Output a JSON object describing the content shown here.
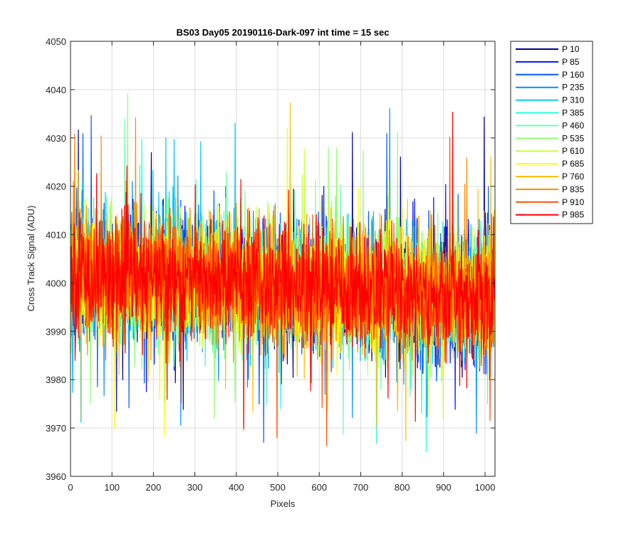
{
  "chart_data": {
    "type": "line",
    "title": "BS03 Day05 20190116-Dark-097 int time = 15 sec",
    "xlabel": "Pixels",
    "ylabel": "Cross Track Signal (ADU)",
    "xlim": [
      0,
      1024
    ],
    "ylim": [
      3960,
      4050
    ],
    "xticks": [
      0,
      100,
      200,
      300,
      400,
      500,
      600,
      700,
      800,
      900,
      1000
    ],
    "yticks": [
      3960,
      3970,
      3980,
      3990,
      4000,
      4010,
      4020,
      4030,
      4040,
      4050
    ],
    "grid": true,
    "legend_position": "outside-top-right",
    "n_points": 1024,
    "trend": {
      "start": 4002,
      "end": 3997,
      "noise_sd": 6
    },
    "series": [
      {
        "name": "P 10",
        "color": "#00008f"
      },
      {
        "name": "P 85",
        "color": "#0010ff"
      },
      {
        "name": "P 160",
        "color": "#005cff"
      },
      {
        "name": "P 235",
        "color": "#0090ff"
      },
      {
        "name": "P 310",
        "color": "#00c8ff"
      },
      {
        "name": "P 385",
        "color": "#20ffe0"
      },
      {
        "name": "P 460",
        "color": "#60ffb0"
      },
      {
        "name": "P 535",
        "color": "#90ff70"
      },
      {
        "name": "P 610",
        "color": "#c8ff40"
      },
      {
        "name": "P 685",
        "color": "#ffff00"
      },
      {
        "name": "P 760",
        "color": "#ffc000"
      },
      {
        "name": "P 835",
        "color": "#ff8c00"
      },
      {
        "name": "P 910",
        "color": "#ff5000"
      },
      {
        "name": "P 985",
        "color": "#ff0000"
      }
    ]
  }
}
